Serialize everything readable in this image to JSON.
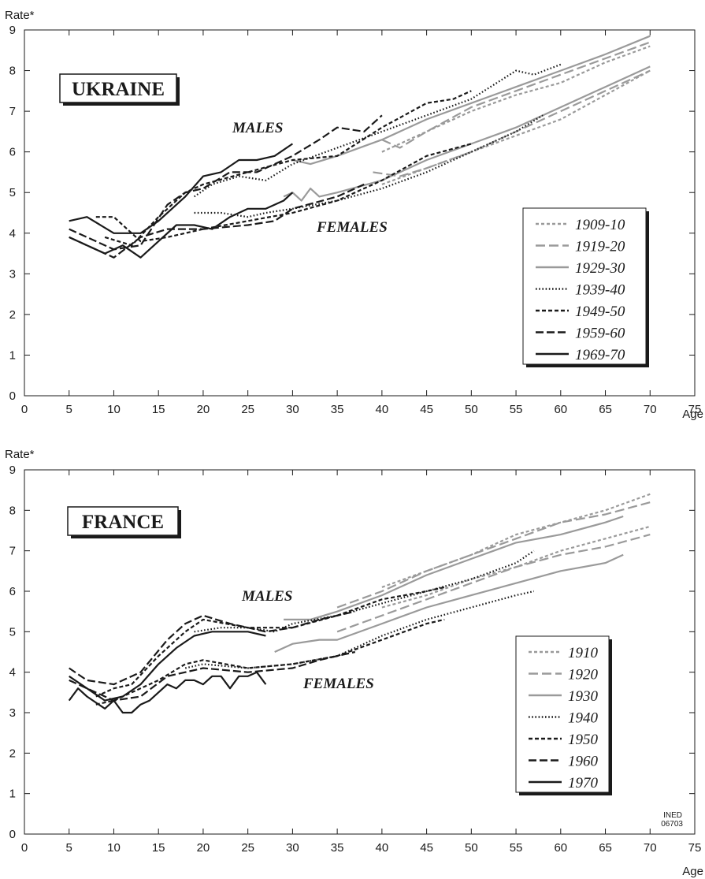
{
  "colors": {
    "axis": "#1a1a1a",
    "dark": "#1a1a1a",
    "grey": "#9a9a9a",
    "background": "#ffffff"
  },
  "watermark": {
    "line1": "INED",
    "line2": "06703"
  },
  "chart_data": [
    {
      "type": "line",
      "title": "UKRAINE",
      "ylabel": "Rate*",
      "xlabel": "Age",
      "xlim": [
        0,
        75
      ],
      "ylim": [
        0,
        9
      ],
      "xticks": [
        0,
        5,
        10,
        15,
        20,
        25,
        30,
        35,
        40,
        45,
        50,
        55,
        60,
        65,
        70,
        75
      ],
      "yticks": [
        0,
        1,
        2,
        3,
        4,
        5,
        6,
        7,
        8,
        9
      ],
      "legend_position": "right",
      "group_labels": {
        "males": "MALES",
        "females": "FEMALES"
      },
      "series": [
        {
          "name": "1909-10",
          "color": "#9a9a9a",
          "dash": "short",
          "males": {
            "x": [
              40,
              45,
              50,
              55,
              60,
              65,
              70
            ],
            "y": [
              6.0,
              6.5,
              7.0,
              7.4,
              7.7,
              8.2,
              8.6
            ]
          },
          "females": {
            "x": [
              40,
              45,
              50,
              55,
              60,
              65,
              70
            ],
            "y": [
              5.2,
              5.6,
              6.0,
              6.4,
              6.8,
              7.4,
              8.0
            ]
          }
        },
        {
          "name": "1919-20",
          "color": "#9a9a9a",
          "dash": "long",
          "males": {
            "x": [
              40,
              42,
              45,
              50,
              55,
              60,
              65,
              70
            ],
            "y": [
              6.3,
              6.1,
              6.5,
              7.1,
              7.5,
              7.9,
              8.3,
              8.7
            ]
          },
          "females": {
            "x": [
              39,
              42,
              45,
              50,
              55,
              60,
              65,
              70
            ],
            "y": [
              5.5,
              5.4,
              5.6,
              6.0,
              6.5,
              7.0,
              7.5,
              8.0
            ]
          }
        },
        {
          "name": "1929-30",
          "color": "#9a9a9a",
          "dash": "solid",
          "males": {
            "x": [
              30,
              32,
              35,
              40,
              45,
              50,
              55,
              60,
              65,
              70
            ],
            "y": [
              5.8,
              5.7,
              5.9,
              6.3,
              6.8,
              7.2,
              7.6,
              8.0,
              8.4,
              8.85
            ]
          },
          "females": {
            "x": [
              29,
              30,
              31,
              32,
              33,
              35,
              40,
              45,
              50,
              55,
              60,
              65,
              70
            ],
            "y": [
              4.9,
              5.0,
              4.8,
              5.1,
              4.9,
              5.0,
              5.3,
              5.8,
              6.2,
              6.6,
              7.1,
              7.6,
              8.1
            ]
          }
        },
        {
          "name": "1939-40",
          "color": "#1a1a1a",
          "dash": "dotted",
          "males": {
            "x": [
              19,
              21,
              24,
              27,
              30,
              35,
              40,
              45,
              50,
              55,
              57,
              60
            ],
            "y": [
              4.9,
              5.2,
              5.4,
              5.3,
              5.7,
              6.1,
              6.5,
              6.9,
              7.3,
              8.0,
              7.9,
              8.15
            ]
          },
          "females": {
            "x": [
              19,
              22,
              25,
              27,
              30,
              35,
              40,
              45,
              50,
              55,
              58
            ],
            "y": [
              4.5,
              4.5,
              4.4,
              4.5,
              4.6,
              4.8,
              5.1,
              5.5,
              6.0,
              6.5,
              6.9
            ]
          }
        },
        {
          "name": "1949-50",
          "color": "#1a1a1a",
          "dash": "dashed",
          "males": {
            "x": [
              9,
              12,
              15,
              18,
              20,
              25,
              30,
              35,
              40,
              45,
              48,
              50
            ],
            "y": [
              3.9,
              3.7,
              4.4,
              5.0,
              5.2,
              5.5,
              5.8,
              5.9,
              6.6,
              7.2,
              7.3,
              7.5
            ]
          },
          "females": {
            "x": [
              8,
              10,
              13,
              16,
              20,
              25,
              30,
              35,
              40,
              45,
              50
            ],
            "y": [
              4.4,
              4.4,
              3.8,
              3.9,
              4.1,
              4.3,
              4.5,
              4.8,
              5.3,
              5.9,
              6.2
            ]
          }
        },
        {
          "name": "1959-60",
          "color": "#1a1a1a",
          "dash": "longdash",
          "males": {
            "x": [
              5,
              7,
              10,
              13,
              16,
              18,
              20,
              23,
              26,
              30,
              33,
              35,
              38,
              40
            ],
            "y": [
              4.1,
              3.9,
              3.6,
              3.7,
              4.7,
              5.0,
              5.1,
              5.5,
              5.5,
              5.9,
              6.3,
              6.6,
              6.5,
              6.9
            ]
          },
          "females": {
            "x": [
              5,
              7,
              10,
              13,
              16,
              20,
              25,
              28,
              30,
              35,
              38
            ],
            "y": [
              3.9,
              3.7,
              3.4,
              3.9,
              4.1,
              4.1,
              4.2,
              4.3,
              4.6,
              4.9,
              5.2
            ]
          }
        },
        {
          "name": "1969-70",
          "color": "#1a1a1a",
          "dash": "solid",
          "males": {
            "x": [
              5,
              7,
              10,
              13,
              15,
              18,
              20,
              22,
              24,
              26,
              28,
              30
            ],
            "y": [
              4.3,
              4.4,
              4.0,
              4.0,
              4.3,
              4.9,
              5.4,
              5.5,
              5.8,
              5.8,
              5.9,
              6.2
            ]
          },
          "females": {
            "x": [
              5,
              7,
              9,
              11,
              13,
              15,
              17,
              19,
              21,
              23,
              25,
              27,
              29,
              30
            ],
            "y": [
              3.9,
              3.7,
              3.5,
              3.7,
              3.4,
              3.8,
              4.2,
              4.2,
              4.1,
              4.4,
              4.6,
              4.6,
              4.8,
              5.0
            ]
          }
        }
      ]
    },
    {
      "type": "line",
      "title": "FRANCE",
      "ylabel": "Rate*",
      "xlabel": "Age",
      "xlim": [
        0,
        75
      ],
      "ylim": [
        0,
        9
      ],
      "xticks": [
        0,
        5,
        10,
        15,
        20,
        25,
        30,
        35,
        40,
        45,
        50,
        55,
        60,
        65,
        70,
        75
      ],
      "yticks": [
        0,
        1,
        2,
        3,
        4,
        5,
        6,
        7,
        8,
        9
      ],
      "legend_position": "right",
      "group_labels": {
        "males": "MALES",
        "females": "FEMALES"
      },
      "series": [
        {
          "name": "1910",
          "color": "#9a9a9a",
          "dash": "short",
          "males": {
            "x": [
              40,
              45,
              50,
              55,
              60,
              65,
              70
            ],
            "y": [
              6.1,
              6.5,
              6.9,
              7.4,
              7.7,
              8.0,
              8.4
            ]
          },
          "females": {
            "x": [
              40,
              45,
              50,
              55,
              60,
              65,
              70
            ],
            "y": [
              5.6,
              5.9,
              6.3,
              6.6,
              7.0,
              7.3,
              7.6
            ]
          }
        },
        {
          "name": "1920",
          "color": "#9a9a9a",
          "dash": "long",
          "males": {
            "x": [
              35,
              40,
              45,
              50,
              55,
              60,
              65,
              70
            ],
            "y": [
              5.6,
              6.0,
              6.5,
              6.9,
              7.3,
              7.7,
              7.9,
              8.2
            ]
          },
          "females": {
            "x": [
              35,
              40,
              45,
              50,
              55,
              60,
              65,
              70
            ],
            "y": [
              5.0,
              5.4,
              5.8,
              6.2,
              6.6,
              6.9,
              7.1,
              7.4
            ]
          }
        },
        {
          "name": "1930",
          "color": "#9a9a9a",
          "dash": "solid",
          "males": {
            "x": [
              29,
              32,
              35,
              40,
              45,
              50,
              55,
              60,
              65,
              67
            ],
            "y": [
              5.3,
              5.3,
              5.5,
              5.9,
              6.4,
              6.8,
              7.2,
              7.4,
              7.7,
              7.85
            ]
          },
          "females": {
            "x": [
              28,
              30,
              33,
              35,
              40,
              45,
              50,
              55,
              60,
              65,
              67
            ],
            "y": [
              4.5,
              4.7,
              4.8,
              4.8,
              5.2,
              5.6,
              5.9,
              6.2,
              6.5,
              6.7,
              6.9
            ]
          }
        },
        {
          "name": "1940",
          "color": "#1a1a1a",
          "dash": "dotted",
          "males": {
            "x": [
              19,
              22,
              25,
              28,
              30,
              35,
              40,
              45,
              50,
              55,
              57
            ],
            "y": [
              5.0,
              5.1,
              5.1,
              5.0,
              5.2,
              5.4,
              5.7,
              6.0,
              6.3,
              6.7,
              7.0
            ]
          },
          "females": {
            "x": [
              18,
              20,
              25,
              30,
              35,
              40,
              45,
              50,
              55,
              57
            ],
            "y": [
              4.1,
              4.2,
              4.1,
              4.2,
              4.4,
              4.9,
              5.3,
              5.6,
              5.9,
              6.0
            ]
          }
        },
        {
          "name": "1950",
          "color": "#1a1a1a",
          "dash": "dashed",
          "males": {
            "x": [
              8,
              10,
              12,
              15,
              18,
              20,
              25,
              30,
              35,
              40,
              45,
              47
            ],
            "y": [
              3.4,
              3.6,
              3.7,
              4.4,
              5.0,
              5.3,
              5.1,
              5.1,
              5.4,
              5.8,
              6.0,
              6.1
            ]
          },
          "females": {
            "x": [
              8,
              10,
              12,
              15,
              18,
              20,
              25,
              30,
              35,
              40,
              45,
              47
            ],
            "y": [
              3.2,
              3.3,
              3.5,
              3.8,
              4.2,
              4.3,
              4.1,
              4.2,
              4.4,
              4.8,
              5.2,
              5.3
            ]
          }
        },
        {
          "name": "1960",
          "color": "#1a1a1a",
          "dash": "longdash",
          "males": {
            "x": [
              5,
              7,
              10,
              13,
              16,
              18,
              20,
              23,
              27,
              30,
              33,
              37
            ],
            "y": [
              4.1,
              3.8,
              3.7,
              4.0,
              4.8,
              5.2,
              5.4,
              5.2,
              5.0,
              5.1,
              5.3,
              5.5
            ]
          },
          "females": {
            "x": [
              5,
              7,
              10,
              13,
              16,
              18,
              20,
              25,
              30,
              33,
              37
            ],
            "y": [
              3.8,
              3.6,
              3.3,
              3.4,
              3.9,
              4.0,
              4.1,
              4.0,
              4.1,
              4.3,
              4.5
            ]
          }
        },
        {
          "name": "1970",
          "color": "#1a1a1a",
          "dash": "solid",
          "males": {
            "x": [
              5,
              7,
              9,
              11,
              13,
              15,
              17,
              19,
              21,
              23,
              25,
              27
            ],
            "y": [
              3.9,
              3.6,
              3.3,
              3.4,
              3.7,
              4.2,
              4.6,
              4.9,
              5.0,
              5.0,
              5.0,
              4.9
            ]
          },
          "females": {
            "x": [
              5,
              6,
              7,
              9,
              10,
              11,
              12,
              13,
              14,
              15,
              16,
              17,
              18,
              19,
              20,
              21,
              22,
              23,
              24,
              25,
              26,
              27
            ],
            "y": [
              3.3,
              3.6,
              3.4,
              3.1,
              3.3,
              3.0,
              3.0,
              3.2,
              3.3,
              3.5,
              3.7,
              3.6,
              3.8,
              3.8,
              3.7,
              3.9,
              3.9,
              3.6,
              3.9,
              3.9,
              4.0,
              3.7
            ]
          }
        }
      ]
    }
  ]
}
